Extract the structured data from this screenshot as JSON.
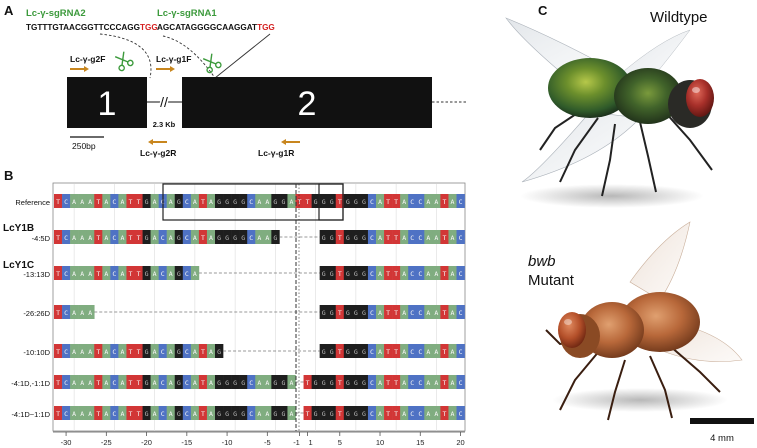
{
  "panels": {
    "a": "A",
    "b": "B",
    "c": "C"
  },
  "colors": {
    "A": "#80ad80",
    "C": "#4f72c4",
    "G": "#1e1e1e",
    "T": "#d23636",
    "guide_label": "#3c9a3c",
    "pam": "#d42020",
    "primer": "#c8861e"
  },
  "panel_a": {
    "sgrna2": {
      "label": "Lc-γ-sgRNA2",
      "seq": "TGTTTGTAACGGTTCCCAGG",
      "pam": "TGG"
    },
    "sgrna1": {
      "label": "Lc-γ-sgRNA1",
      "seq": "AGCATAGGGGCAAGGAT",
      "pam": "TGG"
    },
    "primers": {
      "g2F": "Lc-γ-g2F",
      "g1F": "Lc-γ-g1F",
      "g2R": "Lc-γ-g2R",
      "g1R": "Lc-γ-g1R"
    },
    "exon1_label": "1",
    "exon2_label": "2",
    "break_mark": "//",
    "gap_label": "2.3 Kb",
    "scalebar_label": "250bp"
  },
  "panel_b": {
    "reference_label": "Reference",
    "ref_seq": "TCAAATACATTGACAGCATAGGGGCAAGGATTGGGTGGGCATTACCAATAC",
    "groups": [
      "LcY1B",
      "LcY1C"
    ],
    "rows": [
      {
        "label": "-4:5D",
        "seq": "TCAAATACATTGACAGCATAGGGGCAAG--------GGTGGGCATTACCAATAC"
      },
      {
        "label": "-13:13D",
        "seq": "TCAAATACATTGACAGCA-------------GGTGGGCATTACCAATAC"
      },
      {
        "label": "-26:26D",
        "seq": "TCAAA--------------------------GGTGGGCATTACCAATAC"
      },
      {
        "label": "-10:10D",
        "seq": "TCAAATACATTGACAGCATAG----------GGTGGGCATTACCAATAC"
      },
      {
        "label": "-4:1D,-1:1D",
        "seq": "TCAAATACATTGACAGCATAGGGGCAAGGA-TGGGTGGGCATTACCAATAC"
      },
      {
        "label": "-4:1D~1:1D",
        "seq": "TCAAATACATTGACAGCATAGGGGCAAGGA-TGGGTGGGCATTACCAATAC"
      }
    ],
    "axis_ticks": [
      "-30",
      "-25",
      "-20",
      "-15",
      "-10",
      "-5",
      "-1",
      "1",
      "5",
      "10",
      "15",
      "20"
    ],
    "axis_values": [
      -30,
      -25,
      -20,
      -15,
      -10,
      -5,
      -1,
      1,
      5,
      10,
      15,
      20
    ]
  },
  "panel_c": {
    "wildtype_label": "Wildtype",
    "mutant_gene": "bwb",
    "mutant_label": "Mutant",
    "scalebar_label": "4 mm"
  }
}
